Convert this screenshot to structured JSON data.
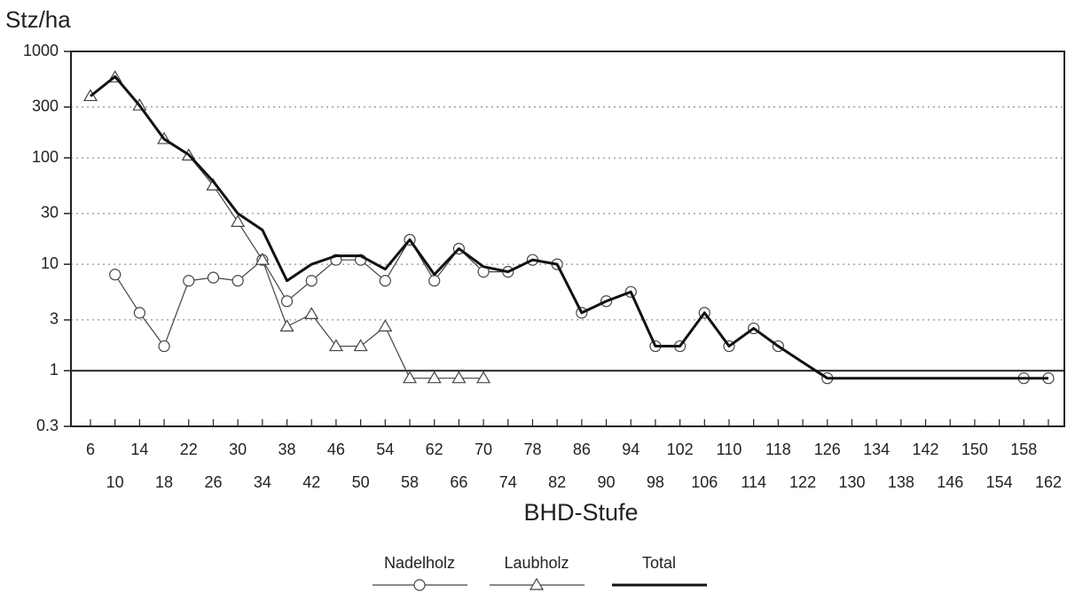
{
  "chart_data": {
    "type": "line",
    "ylabel": "Stz/ha",
    "xlabel": "BHD-Stufe",
    "log_y": true,
    "grid": true,
    "hline": 1,
    "ylim": [
      0.3,
      1000
    ],
    "yticks": [
      0.3,
      1,
      3,
      10,
      30,
      100,
      300,
      1000
    ],
    "categories": [
      "6",
      "10",
      "14",
      "18",
      "22",
      "26",
      "30",
      "34",
      "38",
      "42",
      "46",
      "50",
      "54",
      "58",
      "62",
      "66",
      "70",
      "74",
      "78",
      "82",
      "86",
      "90",
      "94",
      "98",
      "102",
      "106",
      "110",
      "114",
      "118",
      "122",
      "126",
      "130",
      "134",
      "138",
      "142",
      "146",
      "150",
      "154",
      "158",
      "162"
    ],
    "series": [
      {
        "name": "Nadelholz",
        "color": "#444444",
        "marker": "circle",
        "values": [
          null,
          8,
          3.5,
          1.7,
          7,
          7.5,
          7,
          11,
          4.5,
          7,
          11,
          11,
          7,
          17,
          7,
          14,
          8.5,
          8.5,
          11,
          10,
          3.5,
          4.5,
          5.5,
          1.7,
          1.7,
          3.5,
          1.7,
          2.5,
          1.7,
          null,
          0.85,
          null,
          null,
          null,
          null,
          null,
          null,
          null,
          0.85,
          0.85
        ]
      },
      {
        "name": "Laubholz",
        "color": "#444444",
        "marker": "triangle",
        "values": [
          380,
          570,
          310,
          150,
          105,
          55,
          25,
          11,
          2.6,
          3.4,
          1.7,
          1.7,
          2.6,
          0.85,
          0.85,
          0.85,
          0.85,
          null,
          null,
          null,
          null,
          null,
          null,
          null,
          null,
          null,
          null,
          null,
          null,
          null,
          null,
          null,
          null,
          null,
          null,
          null,
          null,
          null,
          null,
          null
        ]
      },
      {
        "name": "Total",
        "color": "#111111",
        "marker": "none",
        "values": [
          380,
          580,
          310,
          150,
          107,
          60,
          30,
          21,
          7,
          10,
          12,
          12,
          9,
          17,
          8,
          14,
          9.5,
          8.5,
          11,
          10,
          3.5,
          4.5,
          5.5,
          1.7,
          1.7,
          3.5,
          1.7,
          2.5,
          1.7,
          1.2,
          0.85,
          0.85,
          0.85,
          0.85,
          0.85,
          0.85,
          0.85,
          0.85,
          0.85,
          0.85
        ]
      }
    ]
  }
}
